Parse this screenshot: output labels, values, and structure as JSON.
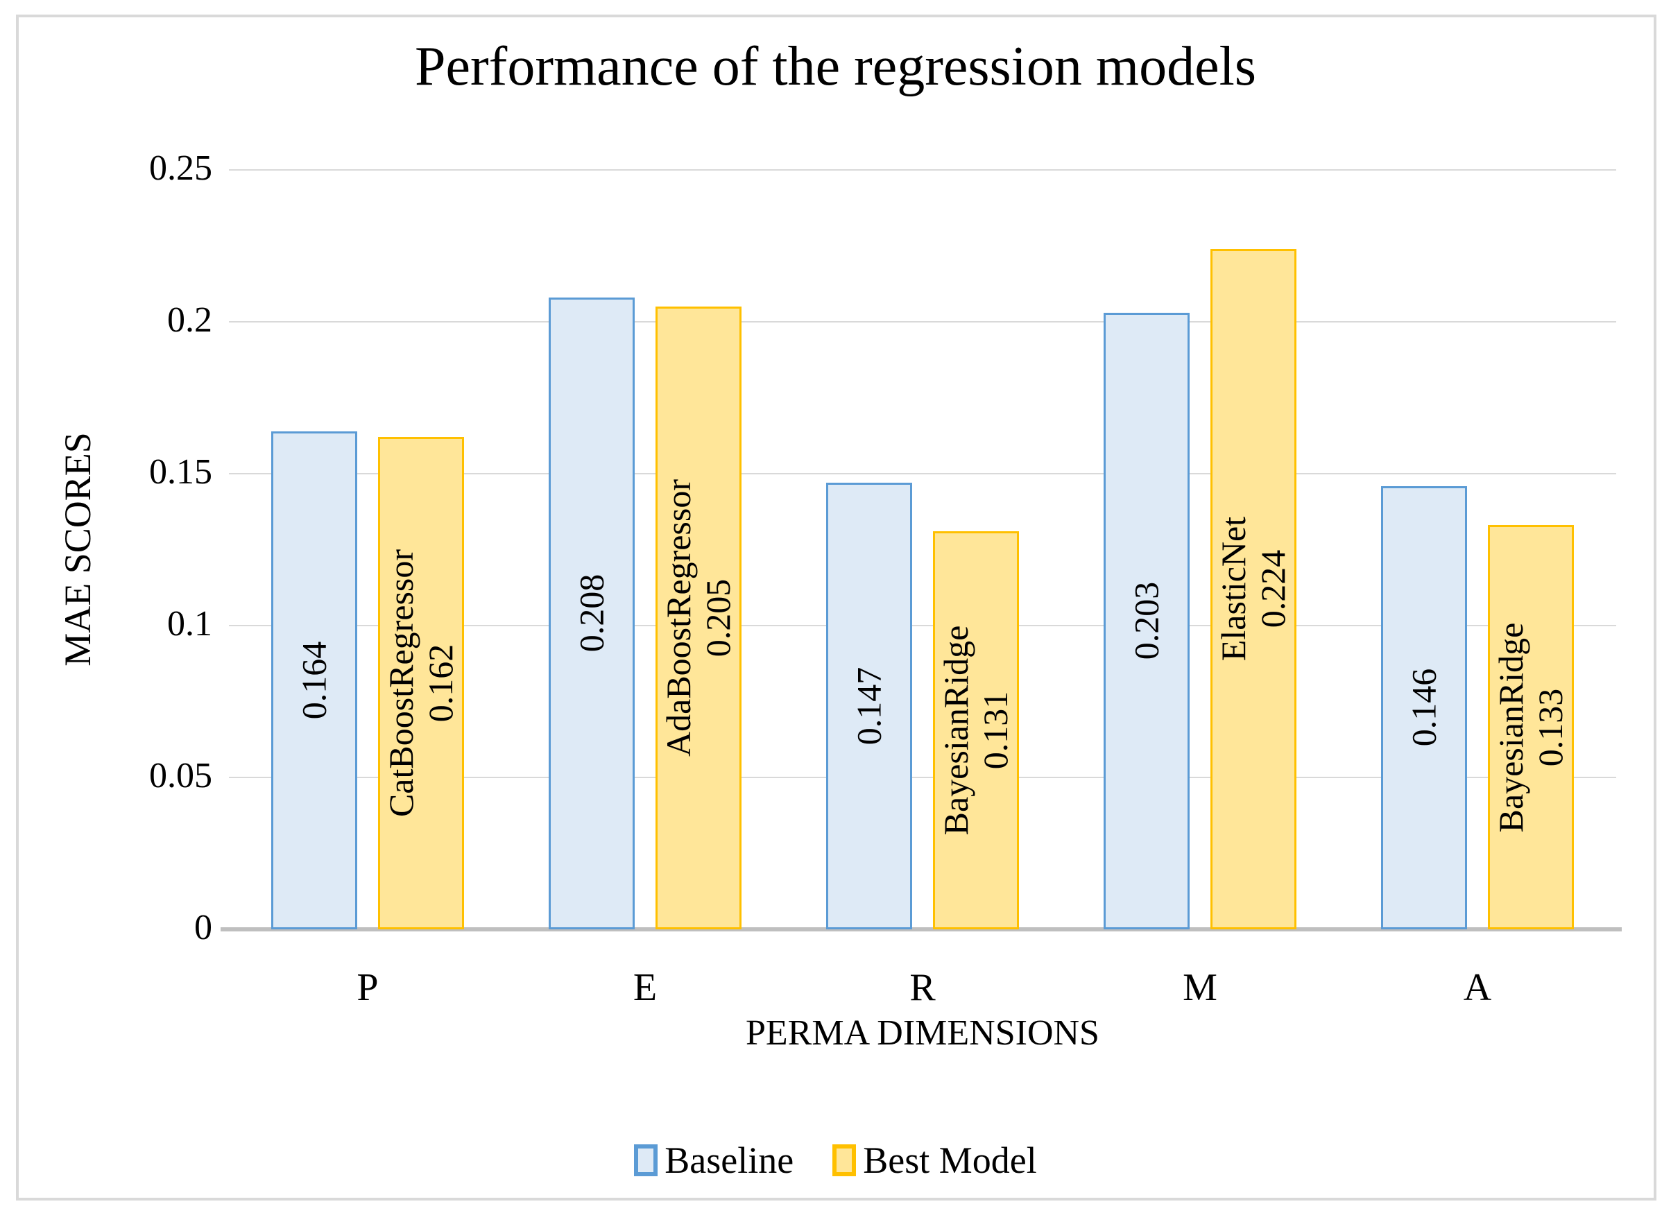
{
  "chart_data": {
    "type": "bar",
    "title": "Performance of the regression models",
    "xlabel": "PERMA DIMENSIONS",
    "ylabel": "MAE SCORES",
    "categories": [
      "P",
      "E",
      "R",
      "M",
      "A"
    ],
    "series": [
      {
        "name": "Baseline",
        "fill": "#DEEAF6",
        "border": "#5B9BD5",
        "values": [
          0.164,
          0.208,
          0.147,
          0.203,
          0.146
        ],
        "bar_labels": [
          [
            "0.164"
          ],
          [
            "0.208"
          ],
          [
            "0.147"
          ],
          [
            "0.203"
          ],
          [
            "0.146"
          ]
        ]
      },
      {
        "name": "Best Model",
        "fill": "#FFE699",
        "border": "#FFC000",
        "values": [
          0.162,
          0.205,
          0.131,
          0.224,
          0.133
        ],
        "bar_labels": [
          [
            "CatBoostRegressor",
            "0.162"
          ],
          [
            "AdaBoostRegressor",
            "0.205"
          ],
          [
            "BayesianRidge",
            "0.131"
          ],
          [
            "ElasticNet",
            "0.224"
          ],
          [
            "BayesianRidge",
            "0.133"
          ]
        ]
      }
    ],
    "ylim": [
      0,
      0.25
    ],
    "yticks": [
      {
        "v": 0,
        "label": "0"
      },
      {
        "v": 0.05,
        "label": "0.05"
      },
      {
        "v": 0.1,
        "label": "0.1"
      },
      {
        "v": 0.15,
        "label": "0.15"
      },
      {
        "v": 0.2,
        "label": "0.2"
      },
      {
        "v": 0.25,
        "label": "0.25"
      }
    ],
    "grid": true,
    "legend_position": "bottom",
    "colors": {
      "gridline": "#D9D9D9",
      "axis_line": "#BFBFBF",
      "frame": "#D9D9D9",
      "text": "#000000",
      "background": "#FFFFFF"
    }
  }
}
